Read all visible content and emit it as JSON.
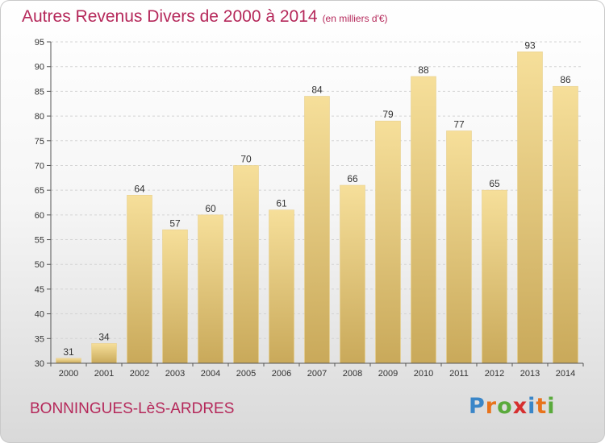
{
  "header": {
    "title": "Autres Revenus Divers de 2000 à 2014",
    "unit": "(en milliers d'€)"
  },
  "footer": {
    "commune": "BONNINGUES-LèS-ARDRES",
    "brand": "Proxiti"
  },
  "colors": {
    "title": "#b5285a",
    "bar_top": "#f6df9a",
    "bar_bottom": "#c9a95a"
  },
  "chart_data": {
    "type": "bar",
    "categories": [
      "2000",
      "2001",
      "2002",
      "2003",
      "2004",
      "2005",
      "2006",
      "2007",
      "2008",
      "2009",
      "2010",
      "2011",
      "2012",
      "2013",
      "2014"
    ],
    "values": [
      31,
      34,
      64,
      57,
      60,
      70,
      61,
      84,
      66,
      79,
      88,
      77,
      65,
      93,
      86
    ],
    "title": "Autres Revenus Divers de 2000 à 2014",
    "subtitle": "(en milliers d'€)",
    "ylim": [
      30,
      95
    ],
    "yticks": [
      30,
      35,
      40,
      45,
      50,
      55,
      60,
      65,
      70,
      75,
      80,
      85,
      90,
      95
    ],
    "grid": true,
    "data_labels": true
  }
}
